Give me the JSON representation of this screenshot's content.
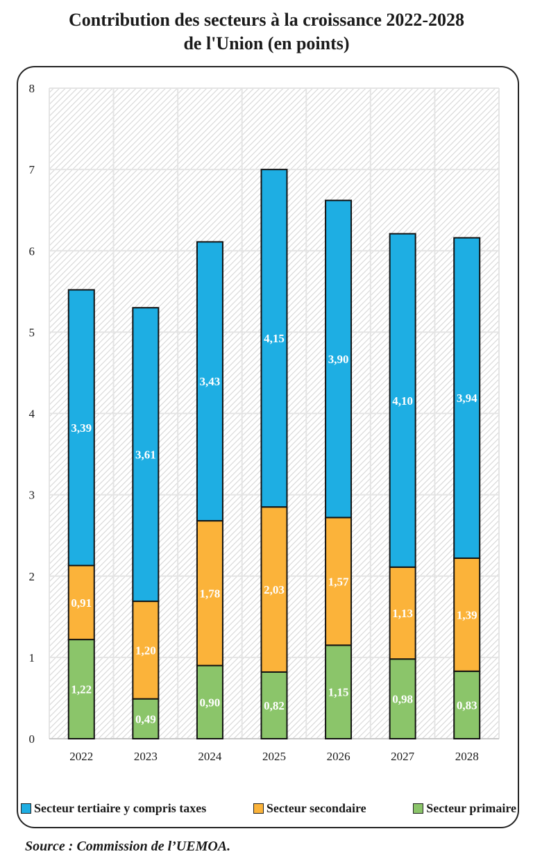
{
  "title_line1": "Contribution des secteurs à la croissance 2022-2028",
  "title_line2": "de l'Union (en points)",
  "source": "Source : Commission de l’UEMOA.",
  "colors": {
    "tertiaire": "#1eaee3",
    "secondaire": "#fbb33a",
    "primaire": "#8bc56a",
    "label": "#ffffff"
  },
  "chart_data": {
    "type": "bar",
    "stacked": true,
    "categories": [
      "2022",
      "2023",
      "2024",
      "2025",
      "2026",
      "2027",
      "2028"
    ],
    "ylim": [
      0,
      8
    ],
    "yticks": [
      "0",
      "1",
      "2",
      "3",
      "4",
      "5",
      "6",
      "7",
      "8"
    ],
    "grid": true,
    "legend_position": "bottom",
    "series": [
      {
        "name": "Secteur primaire",
        "key": "primaire",
        "values": [
          1.22,
          0.49,
          0.9,
          0.82,
          1.15,
          0.98,
          0.83
        ],
        "labels": [
          "1,22",
          "0,49",
          "0,90",
          "0,82",
          "1,15",
          "0,98",
          "0,83"
        ]
      },
      {
        "name": "Secteur secondaire",
        "key": "secondaire",
        "values": [
          0.91,
          1.2,
          1.78,
          2.03,
          1.57,
          1.13,
          1.39
        ],
        "labels": [
          "0,91",
          "1,20",
          "1,78",
          "2,03",
          "1,57",
          "1,13",
          "1,39"
        ]
      },
      {
        "name": "Secteur tertiaire y compris taxes",
        "key": "tertiaire",
        "values": [
          3.39,
          3.61,
          3.43,
          4.15,
          3.9,
          4.1,
          3.94
        ],
        "labels": [
          "3,39",
          "3,61",
          "3,43",
          "4,15",
          "3,90",
          "4,10",
          "3,94"
        ]
      }
    ]
  },
  "legend": [
    {
      "label": "Secteur tertiaire y compris taxes",
      "key": "tertiaire"
    },
    {
      "label": "Secteur secondaire",
      "key": "secondaire"
    },
    {
      "label": "Secteur primaire",
      "key": "primaire"
    }
  ]
}
